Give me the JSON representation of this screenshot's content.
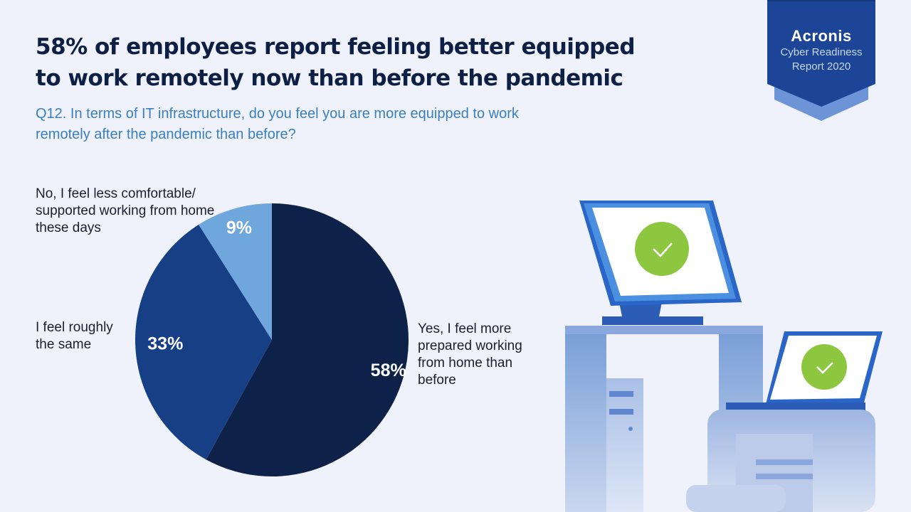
{
  "header": {
    "title": "58% of employees report feeling better equipped to work remotely now than before the pandemic",
    "subtitle": "Q12. In terms of IT infrastructure, do you feel you are more equipped to work remotely after the pandemic than before?"
  },
  "badge": {
    "brand": "Acronis",
    "line1": "Cyber Readiness",
    "line2": "Report 2020"
  },
  "chart_data": {
    "type": "pie",
    "slices": [
      {
        "label": "Yes, I feel more prepared working from home than before",
        "value": 58,
        "display": "58%",
        "color": "#0e2148"
      },
      {
        "label": "I feel roughly the same",
        "value": 33,
        "display": "33%",
        "color": "#173f86"
      },
      {
        "label": "No, I feel less comfortable/ supported working from home these days",
        "value": 9,
        "display": "9%",
        "color": "#6fa6dc"
      }
    ]
  },
  "colors": {
    "background": "#eff2fa",
    "title": "#0d1f45",
    "subtitle": "#3a7fc0",
    "badge": "#1c4597",
    "check": "#8dc63f"
  },
  "illustration": {
    "icons": [
      "desktop-monitor-icon",
      "laptop-icon",
      "checkmark-icon",
      "pc-tower-icon",
      "printer-icon"
    ]
  }
}
